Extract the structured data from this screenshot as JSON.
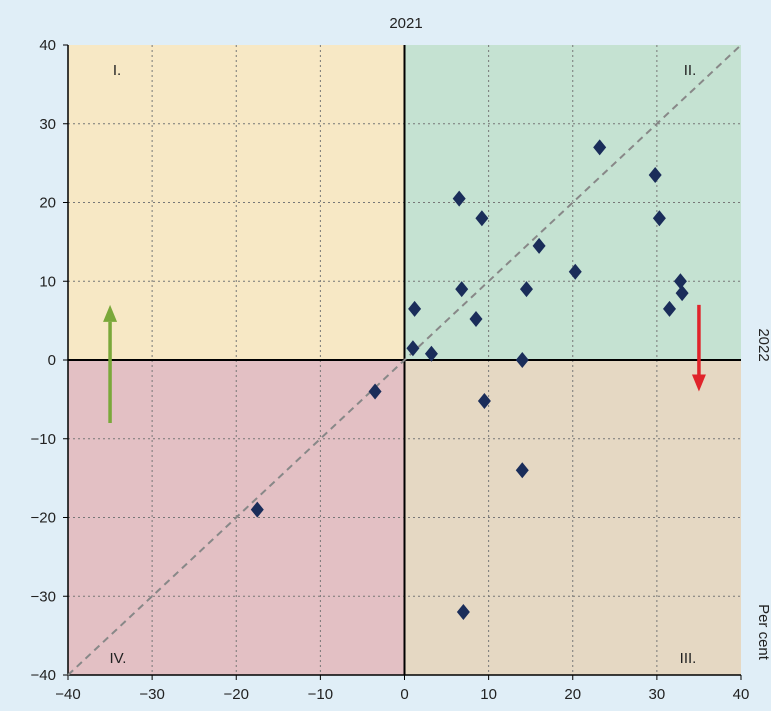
{
  "chart_data": {
    "type": "scatter",
    "title": "2021",
    "right_label": "2022",
    "unit_label": "Per cent",
    "xlim": [
      -40,
      40
    ],
    "ylim": [
      -40,
      40
    ],
    "x_ticks": [
      -40,
      -30,
      -20,
      -10,
      0,
      10,
      20,
      30,
      40
    ],
    "y_ticks": [
      -40,
      -30,
      -20,
      -10,
      0,
      10,
      20,
      30,
      40
    ],
    "x_tick_labels": [
      "−40",
      "−30",
      "−20",
      "−10",
      "0",
      "10",
      "20",
      "30",
      "40"
    ],
    "y_tick_labels": [
      "−40",
      "−30",
      "−20",
      "−10",
      "0",
      "10",
      "20",
      "30",
      "40"
    ],
    "grid": true,
    "diagonal_reference_line": true,
    "quadrants": [
      {
        "label": "I.",
        "position": "top-left",
        "color": "#f7e8c5"
      },
      {
        "label": "II.",
        "position": "top-right",
        "color": "#c5e2d2"
      },
      {
        "label": "III.",
        "position": "bottom-right",
        "color": "#e5d8c3"
      },
      {
        "label": "IV.",
        "position": "bottom-left",
        "color": "#e3c0c4"
      }
    ],
    "arrows": [
      {
        "name": "up-arrow",
        "color": "#7aa83a",
        "x": -35,
        "from": -8,
        "to": 7
      },
      {
        "name": "down-arrow",
        "color": "#e0242b",
        "x": 35,
        "from": 7,
        "to": -4
      }
    ],
    "marker_color": "#1a2d5a",
    "points": [
      [
        -17.5,
        -19
      ],
      [
        -3.5,
        -4
      ],
      [
        1,
        1.5
      ],
      [
        1.2,
        6.5
      ],
      [
        3.2,
        0.8
      ],
      [
        6.5,
        20.5
      ],
      [
        6.8,
        9
      ],
      [
        9.2,
        18
      ],
      [
        8.5,
        5.2
      ],
      [
        9.5,
        -5.2
      ],
      [
        14,
        0
      ],
      [
        14.5,
        9
      ],
      [
        16,
        14.5
      ],
      [
        20.3,
        11.2
      ],
      [
        23.2,
        27
      ],
      [
        29.8,
        23.5
      ],
      [
        30.3,
        18
      ],
      [
        31.5,
        6.5
      ],
      [
        32.8,
        10
      ],
      [
        33,
        8.5
      ],
      [
        14,
        -14
      ],
      [
        7,
        -32
      ]
    ]
  }
}
